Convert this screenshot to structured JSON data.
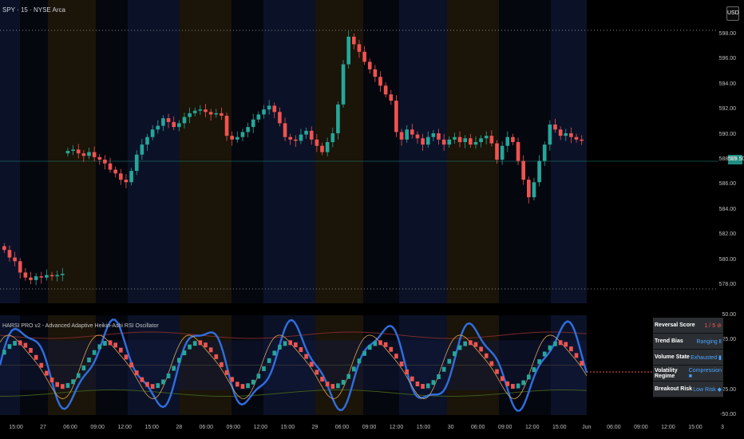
{
  "symbol_title": "SPY · 15 · NYSE Arca",
  "currency_badge": "USD",
  "oscillator_title": "HARSI PRO v2 - Advanced Adaptive Heikin-Ashi RSI Oscillator",
  "last_price_tag": "589.50",
  "price_axis_labels": [
    "598.00",
    "596.00",
    "594.00",
    "592.00",
    "590.00",
    "588.00",
    "586.00",
    "584.00",
    "582.00",
    "580.00",
    "578.00"
  ],
  "oscillator_axis_labels": [
    "50.00",
    "25.00",
    "-25.00",
    "-50.00"
  ],
  "time_axis_labels": [
    "15:00",
    "27",
    "06:00",
    "09:00",
    "12:00",
    "15:00",
    "28",
    "06:00",
    "09:00",
    "12:00",
    "15:00",
    "29",
    "06:00",
    "09:00",
    "12:00",
    "15:00",
    "30",
    "06:00",
    "09:00",
    "12:00",
    "15:00",
    "Jun",
    "06:00",
    "09:00",
    "12:00",
    "15:00",
    "3"
  ],
  "info_table": [
    {
      "label": "Reversal Score",
      "value": "1 / 5",
      "icon": "no-entry-icon",
      "color": "#ff5555"
    },
    {
      "label": "Trend Bias",
      "value": "Ranging",
      "icon": "pause-icon",
      "color": "#4ca3ff"
    },
    {
      "label": "Volume State",
      "value": "Exhausted",
      "icon": "battery-low-icon",
      "color": "#4ca3ff"
    },
    {
      "label": "Volatility Regime",
      "value": "Compression",
      "icon": "lock-icon",
      "color": "#4ca3ff"
    },
    {
      "label": "Breakout Risk",
      "value": "Low Risk",
      "icon": "shield-icon",
      "color": "#4ca3ff"
    }
  ],
  "chart_data": {
    "type": "candlestick",
    "price_ylim": [
      577.5,
      598.5
    ],
    "last_price": 589.5,
    "closes": [
      580.8,
      580.2,
      579.9,
      579.0,
      578.6,
      578.4,
      578.7,
      578.6,
      578.8,
      578.7,
      578.8,
      578.9,
      588.7,
      588.8,
      588.5,
      588.3,
      588.6,
      588.2,
      588.0,
      587.7,
      587.2,
      586.9,
      586.4,
      586.2,
      587.1,
      588.4,
      589.2,
      589.8,
      590.4,
      590.7,
      591.3,
      591.0,
      590.6,
      590.9,
      591.4,
      591.7,
      591.9,
      592.0,
      591.8,
      591.6,
      591.7,
      591.5,
      589.9,
      589.6,
      589.8,
      590.2,
      590.6,
      591.2,
      591.6,
      592.0,
      592.3,
      591.8,
      590.9,
      589.8,
      589.6,
      589.5,
      590.0,
      590.3,
      589.6,
      589.1,
      588.6,
      589.4,
      590.1,
      592.4,
      595.6,
      597.8,
      597.2,
      596.6,
      595.8,
      595.2,
      594.6,
      593.9,
      593.2,
      592.7,
      590.2,
      589.6,
      590.4,
      590.0,
      589.7,
      589.2,
      589.8,
      590.1,
      589.6,
      589.2,
      589.6,
      589.8,
      589.4,
      589.7,
      589.2,
      589.4,
      589.7,
      589.9,
      589.3,
      588.0,
      589.1,
      589.8,
      589.4,
      587.9,
      586.4,
      585.0,
      586.2,
      587.9,
      589.2,
      590.8,
      590.4,
      589.9,
      590.1,
      589.8,
      589.6,
      589.5
    ],
    "oscillator_ylim": [
      -50,
      50
    ],
    "oscillator_levels": [
      50,
      25,
      -25,
      -50
    ]
  }
}
